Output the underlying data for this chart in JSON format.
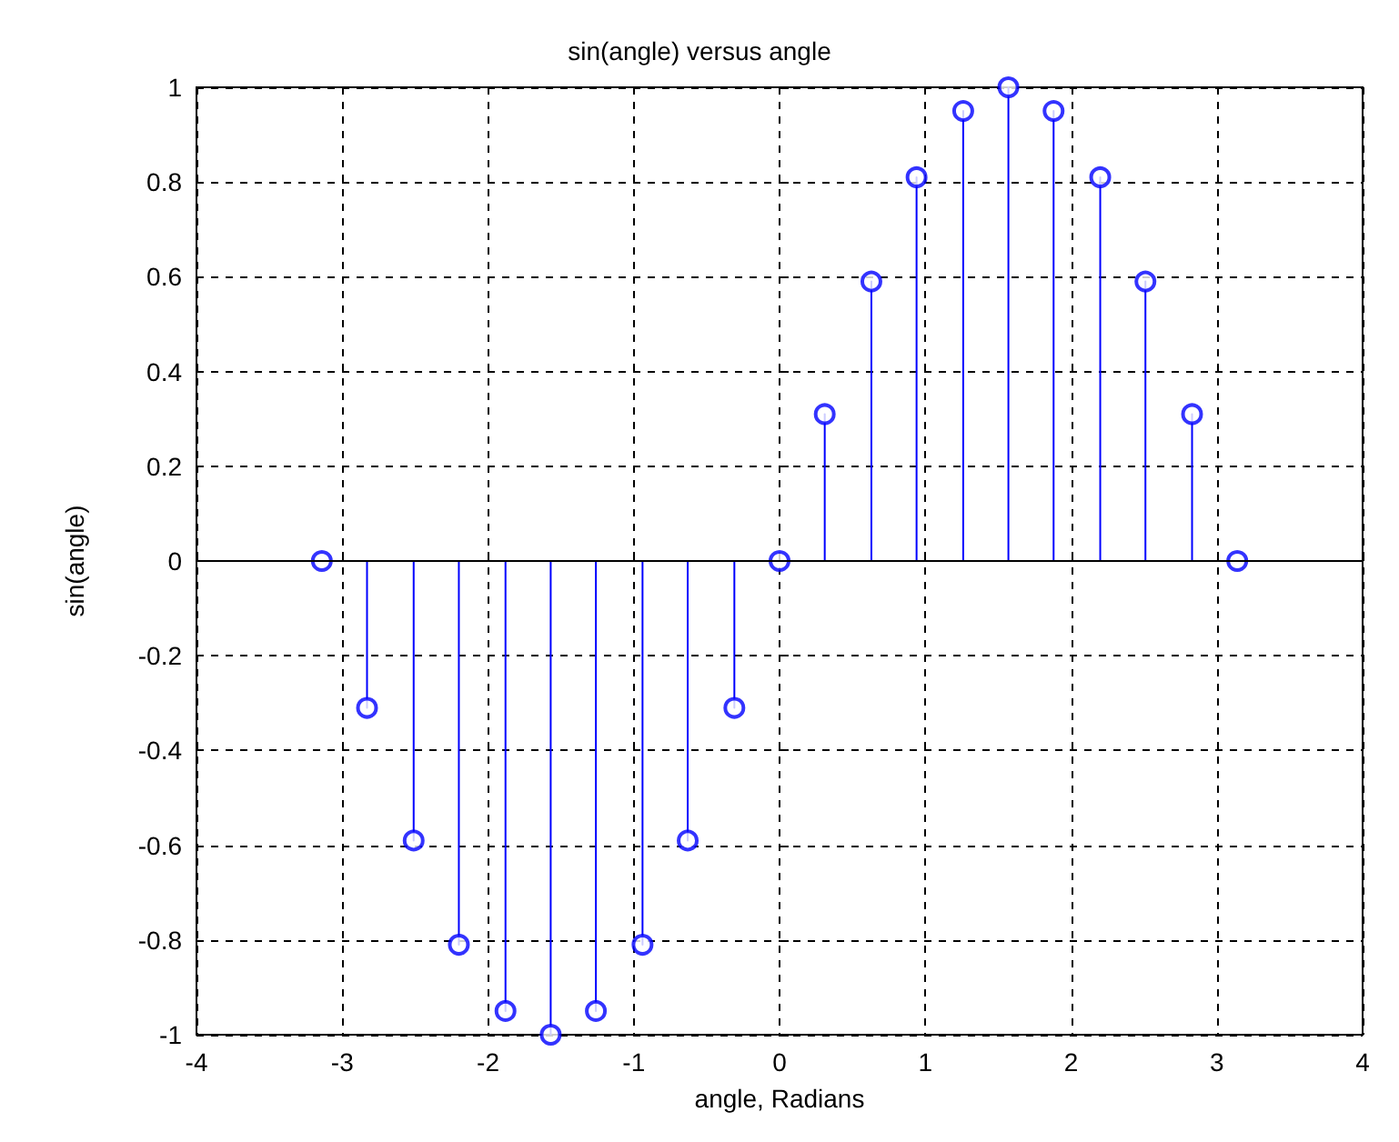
{
  "chart_data": {
    "type": "lollipop",
    "title": "sin(angle) versus angle",
    "xlabel": "angle, Radians",
    "ylabel": "sin(angle)",
    "x": [
      -3.14,
      -2.83,
      -2.51,
      -2.2,
      -1.88,
      -1.57,
      -1.26,
      -0.94,
      -0.63,
      -0.31,
      0,
      0.31,
      0.63,
      0.94,
      1.26,
      1.57,
      1.88,
      2.2,
      2.51,
      2.83,
      3.14
    ],
    "values": [
      0,
      -0.31,
      -0.59,
      -0.81,
      -0.95,
      -1,
      -0.95,
      -0.81,
      -0.59,
      -0.31,
      0,
      0.31,
      0.59,
      0.81,
      0.95,
      1,
      0.95,
      0.81,
      0.59,
      0.31,
      0
    ],
    "color": "#0000ff",
    "marker": "circle",
    "line_style": "solid",
    "xlim": [
      -4,
      4
    ],
    "xticks": [
      -4,
      -3,
      -2,
      -1,
      0,
      1,
      2,
      3,
      4
    ],
    "ylim": [
      -1,
      1
    ],
    "yticks": [
      -1,
      -0.8,
      -0.6,
      -0.4,
      -0.2,
      0,
      0.2,
      0.4,
      0.6,
      0.8,
      1
    ],
    "grid": true,
    "ref_lines": [
      {
        "axis": "y",
        "value": 0,
        "color": "#000000"
      }
    ]
  }
}
